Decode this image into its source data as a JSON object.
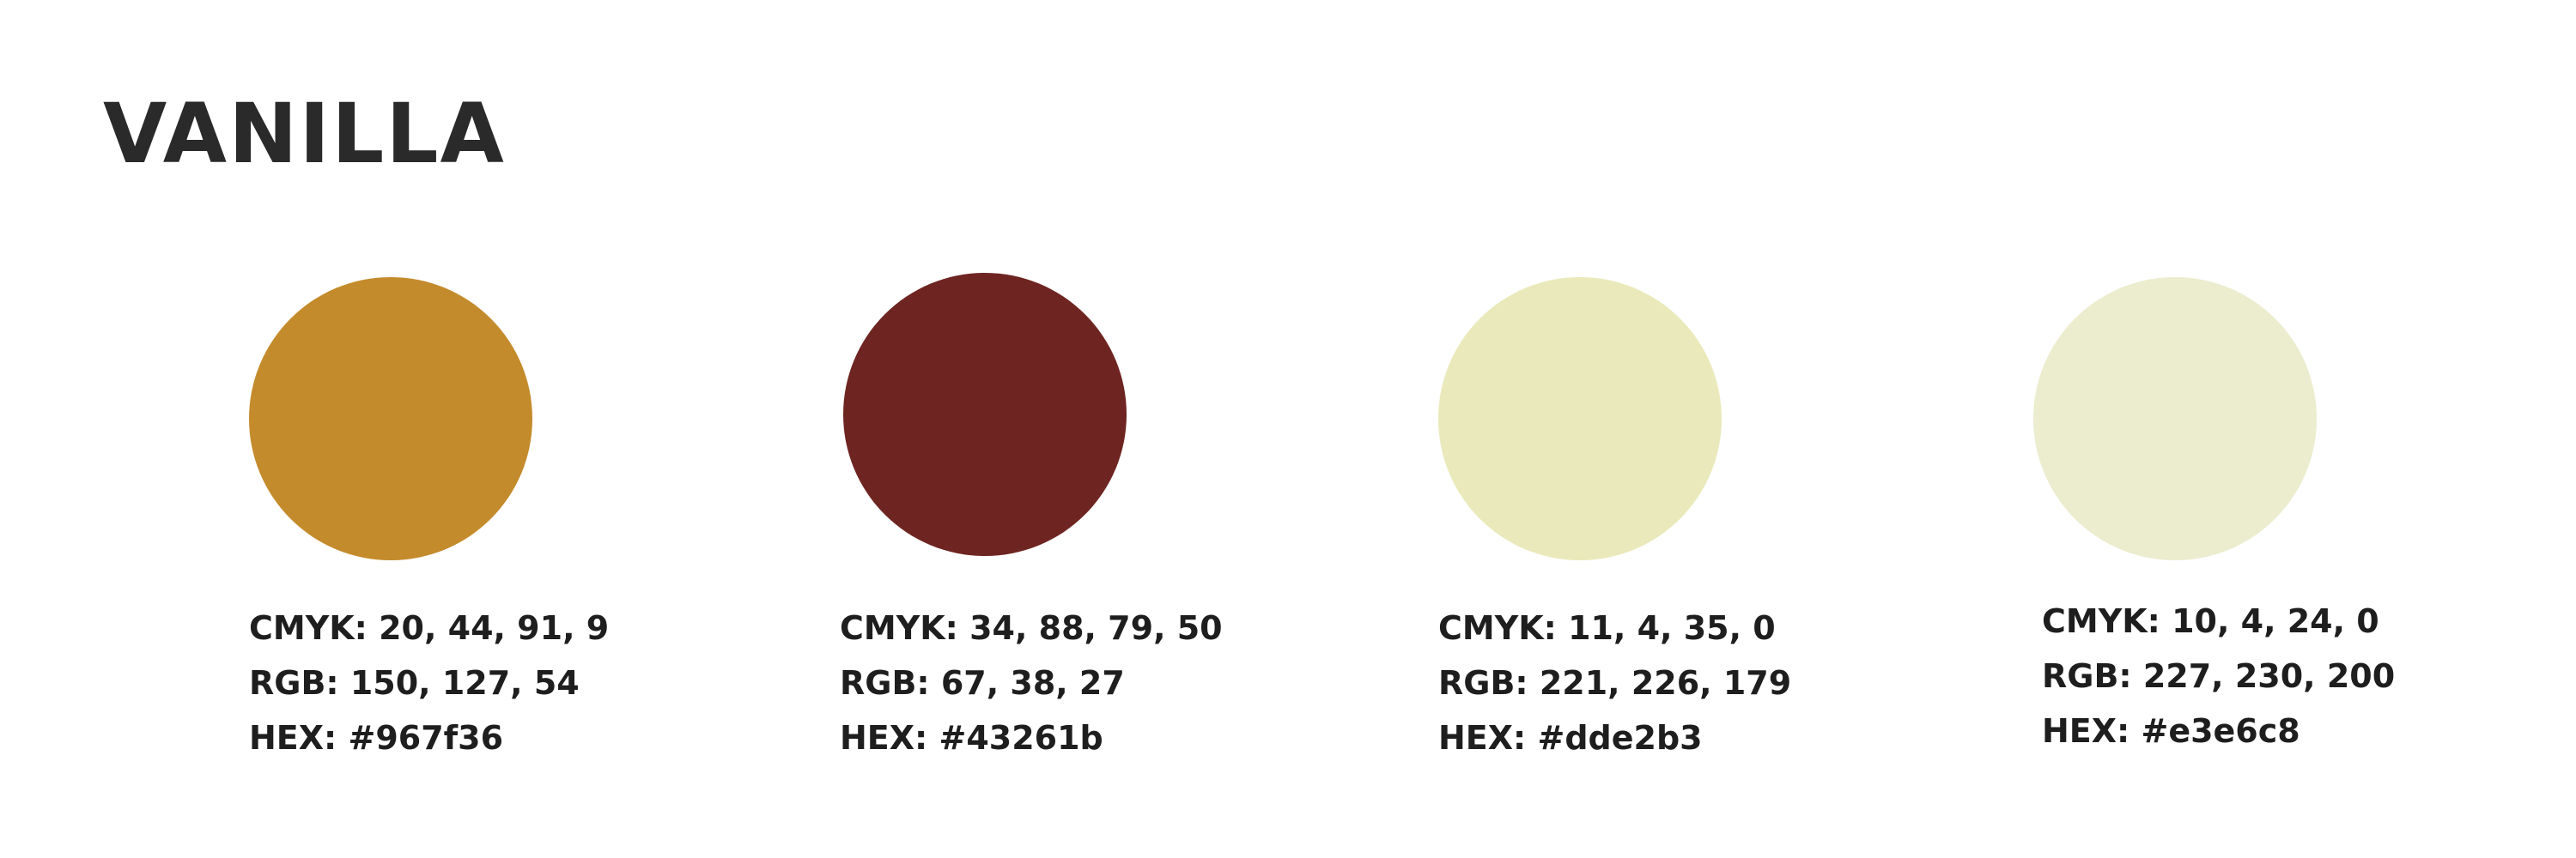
{
  "title": "VANILLA",
  "swatches": [
    {
      "color": "#c48b2c",
      "cmyk": "CMYK: 20, 44, 91, 9",
      "rgb": "RGB: 150, 127, 54",
      "hex": "HEX: #967f36"
    },
    {
      "color": "#6e2521",
      "cmyk": "CMYK: 34, 88, 79, 50",
      "rgb": "RGB: 67, 38, 27",
      "hex": "HEX: #43261b"
    },
    {
      "color": "#e9e9bb",
      "cmyk": "CMYK: 11, 4, 35, 0",
      "rgb": "RGB: 221, 226, 179",
      "hex": "HEX: #dde2b3"
    },
    {
      "color": "#ececcf",
      "cmyk": "CMYK: 10, 4, 24, 0",
      "rgb": "RGB: 227, 230, 200",
      "hex": "HEX: #e3e6c8"
    }
  ]
}
